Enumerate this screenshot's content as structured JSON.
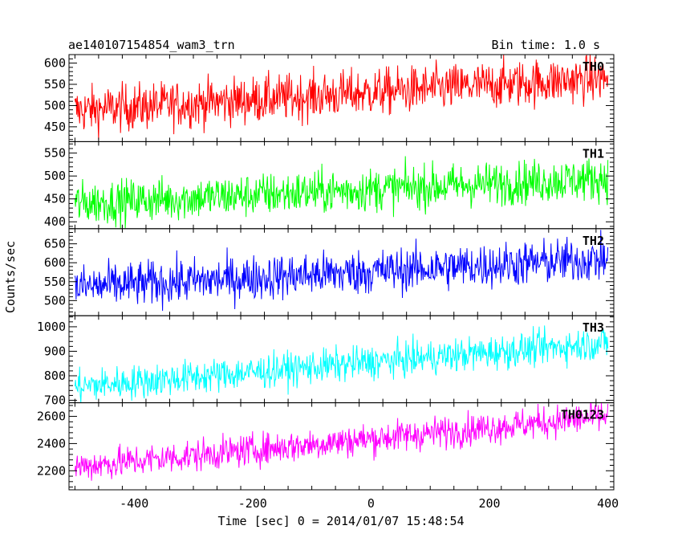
{
  "chart_data": {
    "type": "line",
    "title": "ae140107154854_wam3_trn",
    "bin_time": "Bin time: 1.0 s",
    "xlabel": "Time [sec] 0 = 2014/01/07 15:48:54",
    "ylabel": "Counts/sec",
    "xlim": [
      -510,
      410
    ],
    "xticks": [
      -400,
      -200,
      0,
      200,
      400
    ],
    "x_range": [
      -500,
      400
    ],
    "grid": false,
    "panels": [
      {
        "name": "TH0",
        "color": "#ff0000",
        "ylim": [
          415,
          620
        ],
        "yticks": [
          450,
          500,
          550,
          600
        ],
        "trend_start": 488,
        "trend_end": 565,
        "noise": 28
      },
      {
        "name": "TH1",
        "color": "#00ff00",
        "ylim": [
          385,
          575
        ],
        "yticks": [
          400,
          450,
          500,
          550
        ],
        "trend_start": 440,
        "trend_end": 495,
        "noise": 24
      },
      {
        "name": "TH2",
        "color": "#0000ff",
        "ylim": [
          460,
          690
        ],
        "yticks": [
          500,
          550,
          600,
          650
        ],
        "trend_start": 535,
        "trend_end": 610,
        "noise": 30
      },
      {
        "name": "TH3",
        "color": "#00ffff",
        "ylim": [
          690,
          1045
        ],
        "yticks": [
          700,
          800,
          900,
          1000
        ],
        "trend_start": 755,
        "trend_end": 935,
        "noise": 35
      },
      {
        "name": "TH0123",
        "color": "#ff00ff",
        "ylim": [
          2060,
          2700
        ],
        "yticks": [
          2200,
          2400,
          2600
        ],
        "trend_start": 2230,
        "trend_end": 2600,
        "noise": 60
      }
    ]
  }
}
